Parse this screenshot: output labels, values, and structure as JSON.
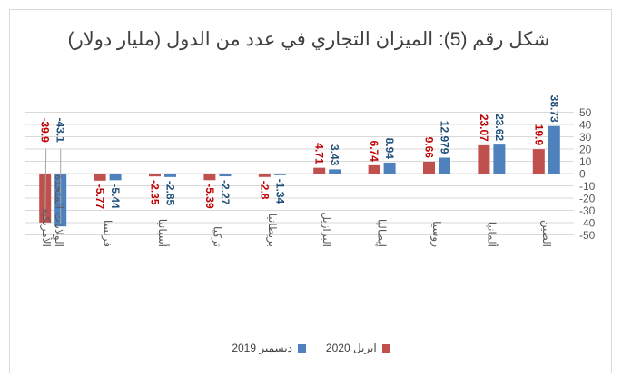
{
  "chart_data": {
    "type": "bar",
    "title": "شكل رقم (5): الميزان التجاري في عدد من الدول (مليار دولار)",
    "categories": [
      "الصين",
      "ألمانيا",
      "روسيا",
      "إيطاليا",
      "البرازيل",
      "بريطانيا",
      "تركيا",
      "أسبانيا",
      "فرنسا",
      "الولايات المتحدة الأمريكية"
    ],
    "category_axis_direction": "right-to-left",
    "series": [
      {
        "name": "ابريل 2020",
        "color": "#c0504d",
        "label_color": "#c00000",
        "values": [
          19.9,
          23.07,
          9.66,
          6.74,
          4.71,
          -2.8,
          -5.39,
          -2.35,
          -5.77,
          -39.9
        ]
      },
      {
        "name": "ديسمبر 2019",
        "color": "#4f81bd",
        "label_color": "#1f4e79",
        "values": [
          38.73,
          23.62,
          12.979,
          8.94,
          3.43,
          -1.34,
          -2.27,
          -2.85,
          -5.44,
          -43.1
        ]
      }
    ],
    "ylim": [
      -50,
      50
    ],
    "yticks": [
      50,
      40,
      30,
      20,
      10,
      0,
      -10,
      -20,
      -30,
      -40,
      -50
    ],
    "y_axis_side": "right",
    "grid": true,
    "legend_position": "bottom",
    "xlabel": "",
    "ylabel": ""
  }
}
